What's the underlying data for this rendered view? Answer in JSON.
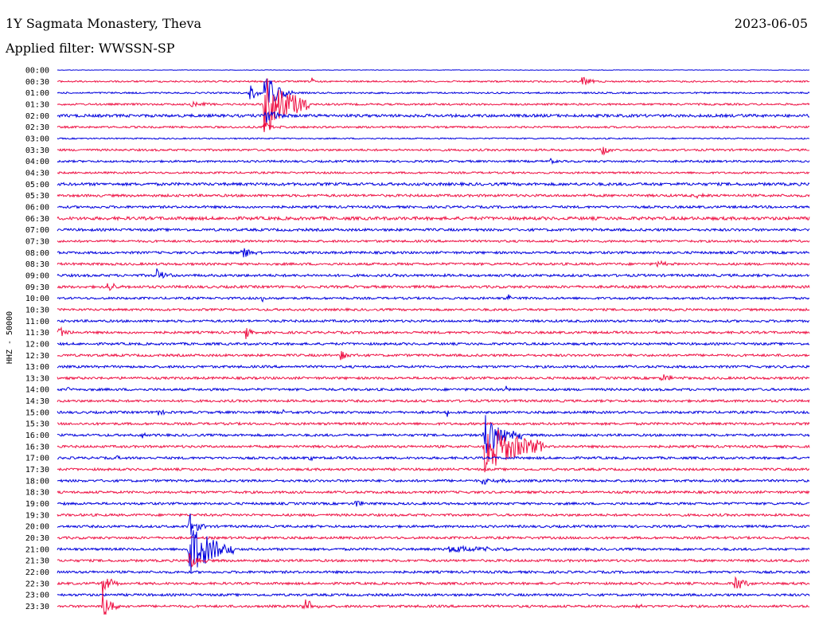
{
  "header": {
    "station": "1Y Sagmata Monastery, Theva",
    "date": "2023-06-05",
    "filter": "Applied filter: WWSSN-SP"
  },
  "chart_data": {
    "type": "helicorder",
    "ylabel": "HHZ - 50000",
    "colors": [
      "#0000dd",
      "#ee1144"
    ],
    "rows": [
      "00:00",
      "00:30",
      "01:00",
      "01:30",
      "02:00",
      "02:30",
      "03:00",
      "03:30",
      "04:00",
      "04:30",
      "05:00",
      "05:30",
      "06:00",
      "06:30",
      "07:00",
      "07:30",
      "08:00",
      "08:30",
      "09:00",
      "09:30",
      "10:00",
      "10:30",
      "11:00",
      "11:30",
      "12:00",
      "12:30",
      "13:00",
      "13:30",
      "14:00",
      "14:30",
      "15:00",
      "15:30",
      "16:00",
      "16:30",
      "17:00",
      "17:30",
      "18:00",
      "18:30",
      "19:00",
      "19:30",
      "20:00",
      "20:30",
      "21:00",
      "21:30",
      "22:00",
      "22:30",
      "23:00",
      "23:30"
    ],
    "noise": [
      0.3,
      1.0,
      1.0,
      1.2,
      1.8,
      1.2,
      0.8,
      1.3,
      1.3,
      1.2,
      1.8,
      1.6,
      1.5,
      2.0,
      1.6,
      1.4,
      1.5,
      1.5,
      1.6,
      1.6,
      1.4,
      1.4,
      1.5,
      1.5,
      1.5,
      1.5,
      1.5,
      1.5,
      1.5,
      1.5,
      1.5,
      1.5,
      1.5,
      1.5,
      1.5,
      1.5,
      1.5,
      1.5,
      1.5,
      1.5,
      1.5,
      1.5,
      1.5,
      1.5,
      1.5,
      1.5,
      1.5,
      1.5
    ],
    "events": [
      {
        "row": 1,
        "t": 0.338,
        "amp": 6,
        "dur": 0.004
      },
      {
        "row": 1,
        "t": 0.697,
        "amp": 9,
        "dur": 0.01
      },
      {
        "row": 2,
        "t": 0.256,
        "amp": 12,
        "dur": 0.012
      },
      {
        "row": 2,
        "t": 0.275,
        "amp": 28,
        "dur": 0.02
      },
      {
        "row": 3,
        "t": 0.175,
        "amp": 5,
        "dur": 0.025
      },
      {
        "row": 3,
        "t": 0.275,
        "amp": 40,
        "dur": 0.04
      },
      {
        "row": 4,
        "t": 0.275,
        "amp": 12,
        "dur": 0.015
      },
      {
        "row": 4,
        "t": 0.903,
        "amp": 5,
        "dur": 0.008
      },
      {
        "row": 5,
        "t": 0.275,
        "amp": 10,
        "dur": 0.01
      },
      {
        "row": 7,
        "t": 0.724,
        "amp": 8,
        "dur": 0.008
      },
      {
        "row": 8,
        "t": 0.656,
        "amp": 5,
        "dur": 0.004
      },
      {
        "row": 11,
        "t": 0.85,
        "amp": 5,
        "dur": 0.006
      },
      {
        "row": 16,
        "t": 0.246,
        "amp": 10,
        "dur": 0.012
      },
      {
        "row": 17,
        "t": 0.797,
        "amp": 5,
        "dur": 0.01
      },
      {
        "row": 18,
        "t": 0.132,
        "amp": 14,
        "dur": 0.008
      },
      {
        "row": 19,
        "t": 0.066,
        "amp": 8,
        "dur": 0.012
      },
      {
        "row": 20,
        "t": 0.272,
        "amp": 10,
        "dur": 0.004
      },
      {
        "row": 20,
        "t": 0.6,
        "amp": 6,
        "dur": 0.004
      },
      {
        "row": 23,
        "t": 0.002,
        "amp": 9,
        "dur": 0.01
      },
      {
        "row": 23,
        "t": 0.25,
        "amp": 10,
        "dur": 0.006
      },
      {
        "row": 25,
        "t": 0.375,
        "amp": 8,
        "dur": 0.01
      },
      {
        "row": 27,
        "t": 0.803,
        "amp": 6,
        "dur": 0.014
      },
      {
        "row": 28,
        "t": 0.014,
        "amp": 6,
        "dur": 0.004
      },
      {
        "row": 28,
        "t": 0.594,
        "amp": 8,
        "dur": 0.004
      },
      {
        "row": 30,
        "t": 0.131,
        "amp": 5,
        "dur": 0.01
      },
      {
        "row": 30,
        "t": 0.299,
        "amp": 6,
        "dur": 0.006
      },
      {
        "row": 30,
        "t": 0.518,
        "amp": 6,
        "dur": 0.004
      },
      {
        "row": 32,
        "t": 0.112,
        "amp": 4,
        "dur": 0.004
      },
      {
        "row": 32,
        "t": 0.568,
        "amp": 28,
        "dur": 0.03
      },
      {
        "row": 33,
        "t": 0.568,
        "amp": 32,
        "dur": 0.06
      },
      {
        "row": 34,
        "t": 0.079,
        "amp": 4,
        "dur": 0.003
      },
      {
        "row": 34,
        "t": 0.336,
        "amp": 5,
        "dur": 0.003
      },
      {
        "row": 36,
        "t": 0.565,
        "amp": 4,
        "dur": 0.03
      },
      {
        "row": 38,
        "t": 0.005,
        "amp": 4,
        "dur": 0.003
      },
      {
        "row": 38,
        "t": 0.396,
        "amp": 9,
        "dur": 0.006
      },
      {
        "row": 40,
        "t": 0.175,
        "amp": 20,
        "dur": 0.01
      },
      {
        "row": 41,
        "t": 0.262,
        "amp": 9,
        "dur": 0.006
      },
      {
        "row": 42,
        "t": 0.175,
        "amp": 34,
        "dur": 0.04
      },
      {
        "row": 42,
        "t": 0.52,
        "amp": 5,
        "dur": 0.06
      },
      {
        "row": 43,
        "t": 0.175,
        "amp": 14,
        "dur": 0.01
      },
      {
        "row": 45,
        "t": 0.06,
        "amp": 18,
        "dur": 0.01
      },
      {
        "row": 45,
        "t": 0.9,
        "amp": 14,
        "dur": 0.012
      },
      {
        "row": 47,
        "t": 0.06,
        "amp": 18,
        "dur": 0.015
      },
      {
        "row": 47,
        "t": 0.327,
        "amp": 14,
        "dur": 0.015
      },
      {
        "row": 47,
        "t": 0.77,
        "amp": 4,
        "dur": 0.006
      }
    ]
  }
}
